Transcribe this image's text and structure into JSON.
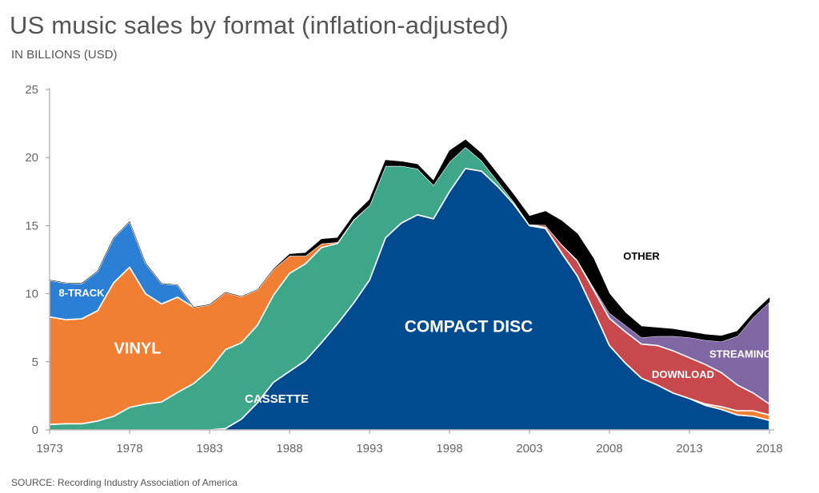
{
  "title": "US music sales by format (inflation-adjusted)",
  "subtitle": "IN BILLIONS (USD)",
  "source": "SOURCE: Recording Industry Association of America",
  "chart_data": {
    "type": "area",
    "stacked": true,
    "title": "US music sales by format (inflation-adjusted)",
    "ylabel": "IN BILLIONS (USD)",
    "xlabel": "",
    "xlim": [
      1973,
      2018
    ],
    "ylim": [
      0,
      25
    ],
    "x_ticks": [
      1973,
      1978,
      1983,
      1988,
      1993,
      1998,
      2003,
      2008,
      2013,
      2018
    ],
    "y_ticks": [
      0,
      5,
      10,
      15,
      20,
      25
    ],
    "x": [
      1973,
      1974,
      1975,
      1976,
      1977,
      1978,
      1979,
      1980,
      1981,
      1982,
      1983,
      1984,
      1985,
      1986,
      1987,
      1988,
      1989,
      1990,
      1991,
      1992,
      1993,
      1994,
      1995,
      1996,
      1997,
      1998,
      1999,
      2000,
      2001,
      2002,
      2003,
      2004,
      2005,
      2006,
      2007,
      2008,
      2009,
      2010,
      2011,
      2012,
      2013,
      2014,
      2015,
      2016,
      2017,
      2018
    ],
    "series": [
      {
        "name": "Compact Disc",
        "label": "COMPACT DISC",
        "color": "#004a8f",
        "values": [
          0,
          0,
          0,
          0,
          0,
          0,
          0,
          0,
          0,
          0,
          0,
          0.1,
          0.8,
          2.0,
          3.5,
          4.3,
          5.1,
          6.4,
          7.8,
          9.3,
          11.0,
          14.1,
          15.2,
          15.8,
          15.5,
          17.5,
          19.2,
          19.0,
          17.9,
          16.6,
          15.0,
          14.8,
          13.0,
          11.3,
          8.8,
          6.2,
          4.9,
          3.8,
          3.3,
          2.7,
          2.3,
          1.8,
          1.5,
          1.1,
          1.0,
          0.7
        ]
      },
      {
        "name": "Cassette",
        "label": "CASSETTE",
        "color": "#3ea789",
        "values": [
          0.4,
          0.45,
          0.45,
          0.65,
          1.0,
          1.65,
          1.9,
          2.05,
          2.75,
          3.4,
          4.4,
          5.8,
          5.6,
          5.7,
          6.4,
          7.2,
          7.1,
          7.0,
          5.9,
          6.1,
          5.5,
          5.3,
          4.2,
          3.4,
          2.5,
          2.2,
          1.6,
          0.8,
          0.4,
          0.2,
          0.1,
          0.05,
          0.02,
          0,
          0,
          0,
          0,
          0,
          0,
          0,
          0,
          0,
          0,
          0,
          0,
          0
        ]
      },
      {
        "name": "Vinyl",
        "label": "VINYL",
        "color": "#f07f33",
        "values": [
          7.9,
          7.65,
          7.7,
          8.1,
          9.8,
          10.3,
          8.1,
          7.2,
          7.0,
          5.6,
          4.8,
          4.2,
          3.4,
          2.6,
          1.9,
          1.3,
          0.6,
          0.3,
          0.1,
          0.05,
          0,
          0,
          0,
          0,
          0,
          0,
          0,
          0,
          0,
          0,
          0,
          0,
          0,
          0,
          0,
          0,
          0,
          0,
          0,
          0,
          0,
          0.1,
          0.2,
          0.3,
          0.4,
          0.4
        ]
      },
      {
        "name": "8-Track",
        "label": "8-TRACK",
        "color": "#2b7fd4",
        "values": [
          2.7,
          2.7,
          2.6,
          2.9,
          3.3,
          3.35,
          2.25,
          1.5,
          0.9,
          0,
          0,
          0,
          0,
          0,
          0,
          0,
          0,
          0,
          0,
          0,
          0,
          0,
          0,
          0,
          0,
          0,
          0,
          0,
          0,
          0,
          0,
          0,
          0,
          0,
          0,
          0,
          0,
          0,
          0,
          0,
          0,
          0,
          0,
          0,
          0,
          0
        ]
      },
      {
        "name": "Download",
        "label": "DOWNLOAD",
        "color": "#c8494d",
        "values": [
          0,
          0,
          0,
          0,
          0,
          0,
          0,
          0,
          0,
          0,
          0,
          0,
          0,
          0,
          0,
          0,
          0,
          0,
          0,
          0,
          0,
          0,
          0,
          0,
          0,
          0,
          0,
          0,
          0,
          0,
          0,
          0.2,
          0.6,
          1.1,
          1.5,
          2.0,
          2.3,
          2.5,
          2.9,
          3.1,
          3.0,
          2.9,
          2.5,
          1.9,
          1.3,
          0.8
        ]
      },
      {
        "name": "Streaming",
        "label": "STREAMING",
        "color": "#7f67a4",
        "values": [
          0,
          0,
          0,
          0,
          0,
          0,
          0,
          0,
          0,
          0,
          0,
          0,
          0,
          0,
          0,
          0,
          0,
          0,
          0,
          0,
          0,
          0,
          0,
          0,
          0,
          0,
          0,
          0,
          0,
          0,
          0,
          0,
          0.05,
          0.1,
          0.2,
          0.4,
          0.5,
          0.5,
          0.7,
          1.1,
          1.5,
          1.8,
          2.3,
          3.6,
          5.6,
          7.5
        ]
      },
      {
        "name": "Other",
        "label": "OTHER",
        "color": "#000000",
        "values": [
          0,
          0,
          0,
          0,
          0,
          0,
          0,
          0,
          0,
          0,
          0,
          0,
          0,
          0,
          0,
          0.1,
          0.2,
          0.3,
          0.3,
          0.3,
          0.4,
          0.4,
          0.3,
          0.3,
          0.3,
          0.8,
          0.5,
          0.5,
          0.5,
          0.5,
          0.6,
          1.0,
          1.7,
          1.9,
          2.1,
          1.4,
          0.9,
          0.8,
          0.6,
          0.5,
          0.4,
          0.4,
          0.4,
          0.35,
          0.3,
          0.3
        ]
      }
    ],
    "annotations": [
      "8-TRACK",
      "VINYL",
      "CASSETTE",
      "COMPACT DISC",
      "DOWNLOAD",
      "STREAMING",
      "OTHER"
    ]
  }
}
